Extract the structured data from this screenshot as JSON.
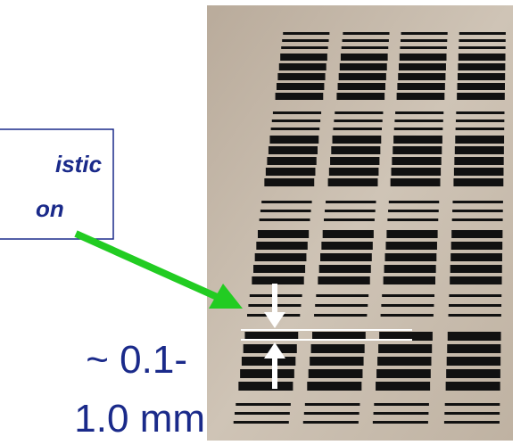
{
  "callout": {
    "line1": "istic",
    "line2": "on"
  },
  "measurement": {
    "line1": "~ 0.1-",
    "line2": "1.0 mm"
  }
}
